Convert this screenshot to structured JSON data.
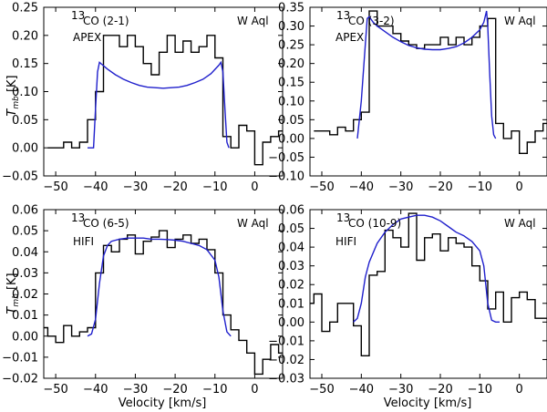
{
  "figure": {
    "xlabel": "Velocity [km/s]",
    "ylabel_main": "T",
    "ylabel_sub": "mb",
    "ylabel_unit": " [K]"
  },
  "chart_data": [
    {
      "type": "line",
      "isotope": "13",
      "transition": "CO (2-1)",
      "instrument": "APEX",
      "star": "W Aql",
      "xlim": [
        -53,
        7
      ],
      "ylim": [
        -0.05,
        0.25
      ],
      "xticks": [
        -50,
        -40,
        -30,
        -20,
        -10,
        0
      ],
      "yticks": [
        -0.05,
        0.0,
        0.05,
        0.1,
        0.15,
        0.2,
        0.25
      ],
      "xtick_labels": [
        "−50",
        "−40",
        "−30",
        "−20",
        "−10",
        "0"
      ],
      "ytick_labels": [
        "−0.05",
        "0.00",
        "0.05",
        "0.10",
        "0.15",
        "0.20",
        "0.25"
      ],
      "series": [
        {
          "name": "observed",
          "style": "steps",
          "color": "#000000",
          "x": [
            -52,
            -48,
            -46,
            -44,
            -42,
            -40,
            -38,
            -36,
            -34,
            -32,
            -30,
            -28,
            -26,
            -24,
            -22,
            -20,
            -18,
            -16,
            -14,
            -12,
            -10,
            -8,
            -6,
            -4,
            -2,
            0,
            2,
            4,
            6
          ],
          "y": [
            0.0,
            0.01,
            0.0,
            0.01,
            0.05,
            0.1,
            0.2,
            0.2,
            0.18,
            0.2,
            0.18,
            0.15,
            0.13,
            0.17,
            0.2,
            0.17,
            0.19,
            0.17,
            0.18,
            0.2,
            0.16,
            0.02,
            0.0,
            0.04,
            0.03,
            -0.03,
            0.01,
            0.02,
            0.03
          ]
        },
        {
          "name": "model",
          "style": "line",
          "color": "#1f1fcc",
          "x": [
            -42,
            -40.5,
            -40,
            -39.5,
            -39,
            -37,
            -35,
            -33,
            -31,
            -29,
            -27,
            -25,
            -23,
            -21,
            -19,
            -17,
            -15,
            -13,
            -11,
            -9,
            -8.5,
            -8,
            -7.5,
            -7,
            -6.5
          ],
          "y": [
            0.0,
            0.0,
            0.07,
            0.135,
            0.152,
            0.14,
            0.13,
            0.122,
            0.116,
            0.111,
            0.108,
            0.107,
            0.106,
            0.107,
            0.108,
            0.111,
            0.116,
            0.122,
            0.132,
            0.147,
            0.152,
            0.135,
            0.07,
            0.01,
            0.0
          ]
        }
      ]
    },
    {
      "type": "line",
      "isotope": "13",
      "transition": "CO (3-2)",
      "instrument": "APEX",
      "star": "W Aql",
      "xlim": [
        -53,
        7
      ],
      "ylim": [
        -0.1,
        0.35
      ],
      "xticks": [
        -50,
        -40,
        -30,
        -20,
        -10,
        0
      ],
      "yticks": [
        -0.1,
        -0.05,
        0.0,
        0.05,
        0.1,
        0.15,
        0.2,
        0.25,
        0.3,
        0.35
      ],
      "xtick_labels": [
        "−50",
        "−40",
        "−30",
        "−20",
        "−10",
        "0"
      ],
      "ytick_labels": [
        "−0.10",
        "−0.05",
        "0.00",
        "0.05",
        "0.10",
        "0.15",
        "0.20",
        "0.25",
        "0.30",
        "0.35"
      ],
      "series": [
        {
          "name": "observed",
          "style": "steps",
          "color": "#000000",
          "x": [
            -52,
            -50,
            -48,
            -46,
            -44,
            -42,
            -40,
            -38,
            -36,
            -34,
            -32,
            -30,
            -28,
            -26,
            -24,
            -22,
            -20,
            -18,
            -16,
            -14,
            -12,
            -10,
            -8,
            -6,
            -4,
            -2,
            0,
            2,
            4,
            6
          ],
          "y": [
            0.02,
            0.02,
            0.01,
            0.03,
            0.02,
            0.05,
            0.07,
            0.34,
            0.3,
            0.3,
            0.28,
            0.26,
            0.25,
            0.24,
            0.25,
            0.25,
            0.27,
            0.25,
            0.27,
            0.25,
            0.27,
            0.3,
            0.32,
            0.04,
            0.0,
            0.02,
            -0.04,
            -0.01,
            0.02,
            0.04
          ]
        },
        {
          "name": "model",
          "style": "line",
          "color": "#1f1fcc",
          "x": [
            -41,
            -40,
            -39,
            -38.5,
            -38,
            -37,
            -36,
            -34,
            -32,
            -30,
            -28,
            -26,
            -24,
            -22,
            -20,
            -18,
            -16,
            -14,
            -12,
            -10,
            -9,
            -8.3,
            -8,
            -7.5,
            -7,
            -6.5,
            -6
          ],
          "y": [
            0.0,
            0.1,
            0.25,
            0.32,
            0.325,
            0.31,
            0.3,
            0.285,
            0.27,
            0.258,
            0.248,
            0.242,
            0.238,
            0.237,
            0.237,
            0.24,
            0.245,
            0.255,
            0.27,
            0.29,
            0.31,
            0.34,
            0.3,
            0.17,
            0.06,
            0.01,
            0.0
          ]
        }
      ]
    },
    {
      "type": "line",
      "isotope": "13",
      "transition": "CO (6-5)",
      "instrument": "HIFI",
      "star": "W Aql",
      "xlim": [
        -53,
        7
      ],
      "ylim": [
        -0.02,
        0.06
      ],
      "xticks": [
        -50,
        -40,
        -30,
        -20,
        -10,
        0
      ],
      "yticks": [
        -0.02,
        -0.01,
        0.0,
        0.01,
        0.02,
        0.03,
        0.04,
        0.05,
        0.06
      ],
      "xtick_labels": [
        "−50",
        "−40",
        "−30",
        "−20",
        "−10",
        "0"
      ],
      "ytick_labels": [
        "−0.02",
        "−0.01",
        "0.00",
        "0.01",
        "0.02",
        "0.03",
        "0.04",
        "0.05",
        "0.06"
      ],
      "series": [
        {
          "name": "observed",
          "style": "steps",
          "color": "#000000",
          "x": [
            -53,
            -52,
            -50,
            -48,
            -46,
            -44,
            -42,
            -40,
            -38,
            -36,
            -34,
            -32,
            -30,
            -28,
            -26,
            -24,
            -22,
            -20,
            -18,
            -16,
            -14,
            -12,
            -10,
            -8,
            -6,
            -4,
            -2,
            0,
            2,
            4,
            6
          ],
          "y": [
            0.004,
            0.0,
            -0.003,
            0.005,
            0.0,
            0.002,
            0.004,
            0.03,
            0.043,
            0.04,
            0.046,
            0.048,
            0.039,
            0.045,
            0.047,
            0.05,
            0.042,
            0.046,
            0.048,
            0.044,
            0.046,
            0.041,
            0.03,
            0.01,
            0.003,
            -0.002,
            -0.008,
            -0.018,
            -0.011,
            -0.004,
            -0.008
          ]
        },
        {
          "name": "model",
          "style": "line",
          "color": "#1f1fcc",
          "x": [
            -42,
            -41,
            -40,
            -39,
            -38,
            -37,
            -36,
            -34,
            -32,
            -30,
            -28,
            -26,
            -24,
            -22,
            -20,
            -18,
            -16,
            -14,
            -12,
            -10,
            -9,
            -8,
            -7,
            -6
          ],
          "y": [
            0.0,
            0.001,
            0.008,
            0.025,
            0.038,
            0.043,
            0.045,
            0.046,
            0.0465,
            0.0465,
            0.0465,
            0.046,
            0.046,
            0.0458,
            0.0455,
            0.045,
            0.044,
            0.043,
            0.041,
            0.036,
            0.028,
            0.012,
            0.002,
            0.0
          ]
        }
      ]
    },
    {
      "type": "line",
      "isotope": "13",
      "transition": "CO (10-9)",
      "instrument": "HIFI",
      "star": "W Aql",
      "xlim": [
        -53,
        7
      ],
      "ylim": [
        -0.03,
        0.06
      ],
      "xticks": [
        -50,
        -40,
        -30,
        -20,
        -10,
        0
      ],
      "yticks": [
        -0.03,
        -0.02,
        -0.01,
        0.0,
        0.01,
        0.02,
        0.03,
        0.04,
        0.05,
        0.06
      ],
      "xtick_labels": [
        "−50",
        "−40",
        "−30",
        "−20",
        "−10",
        "0"
      ],
      "ytick_labels": [
        "−0.03",
        "−0.02",
        "−0.01",
        "0.00",
        "0.01",
        "0.02",
        "0.03",
        "0.04",
        "0.05",
        "0.06"
      ],
      "series": [
        {
          "name": "observed",
          "style": "steps",
          "color": "#000000",
          "x": [
            -53,
            -52,
            -50,
            -48,
            -46,
            -44,
            -42,
            -40,
            -38,
            -36,
            -34,
            -32,
            -30,
            -28,
            -26,
            -24,
            -22,
            -20,
            -18,
            -16,
            -14,
            -12,
            -10,
            -8,
            -6,
            -4,
            -2,
            0,
            2,
            4,
            6
          ],
          "y": [
            0.01,
            0.015,
            -0.005,
            0.0,
            0.01,
            0.01,
            -0.002,
            -0.018,
            0.025,
            0.027,
            0.049,
            0.045,
            0.04,
            0.058,
            0.033,
            0.045,
            0.047,
            0.038,
            0.045,
            0.042,
            0.04,
            0.03,
            0.022,
            0.007,
            0.016,
            0.0,
            0.013,
            0.016,
            0.012,
            0.002,
            0.002
          ]
        },
        {
          "name": "model",
          "style": "line",
          "color": "#1f1fcc",
          "x": [
            -42,
            -41,
            -40,
            -39,
            -38,
            -36,
            -34,
            -32,
            -30,
            -28,
            -26,
            -24,
            -22,
            -20,
            -18,
            -16,
            -14,
            -12,
            -10,
            -9,
            -8,
            -7,
            -6,
            -5
          ],
          "y": [
            0.0,
            0.002,
            0.01,
            0.024,
            0.032,
            0.042,
            0.048,
            0.052,
            0.055,
            0.056,
            0.057,
            0.057,
            0.056,
            0.054,
            0.051,
            0.048,
            0.046,
            0.043,
            0.038,
            0.03,
            0.01,
            0.001,
            0.0,
            0.0
          ]
        }
      ]
    }
  ]
}
